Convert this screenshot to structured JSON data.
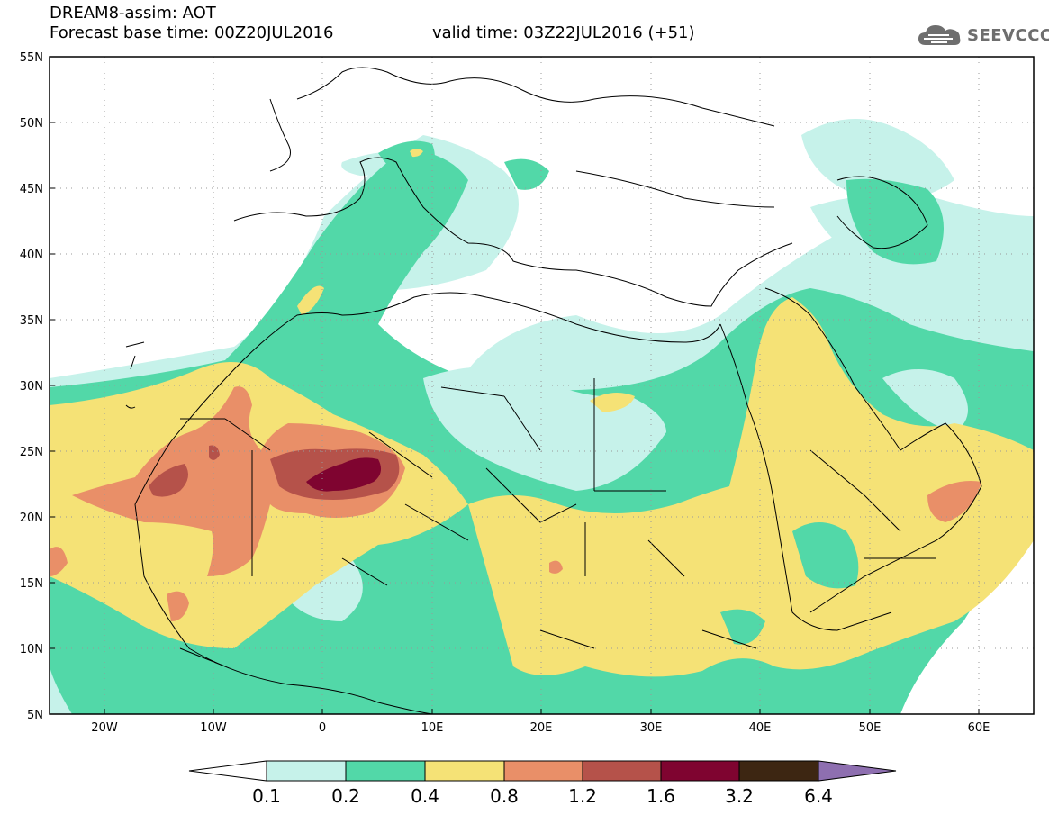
{
  "header": {
    "title_line1": "DREAM8-assim: AOT",
    "title_line2": "Forecast base time: 00Z20JUL2016",
    "valid_time": "valid time: 03Z22JUL2016 (+51)",
    "logo_text": "SEEVCCC",
    "logo_icon": "cloud-icon"
  },
  "map": {
    "lat_labels": [
      "55N",
      "50N",
      "45N",
      "40N",
      "35N",
      "30N",
      "25N",
      "20N",
      "15N",
      "10N",
      "5N"
    ],
    "lon_labels": [
      "20W",
      "10W",
      "0",
      "10E",
      "20E",
      "30E",
      "40E",
      "50E",
      "60E"
    ],
    "lat_range": [
      5,
      55
    ],
    "lon_range": [
      -25,
      65
    ],
    "grid": "dotted"
  },
  "colorbar": {
    "labels": [
      "0.1",
      "0.2",
      "0.4",
      "0.8",
      "1.2",
      "1.6",
      "3.2",
      "6.4"
    ],
    "colors": [
      "#ffffff",
      "#c6f2ea",
      "#52d8a8",
      "#f5e276",
      "#e98f68",
      "#b5524a",
      "#7f0430",
      "#3d2612",
      "#8e6fb0"
    ]
  }
}
